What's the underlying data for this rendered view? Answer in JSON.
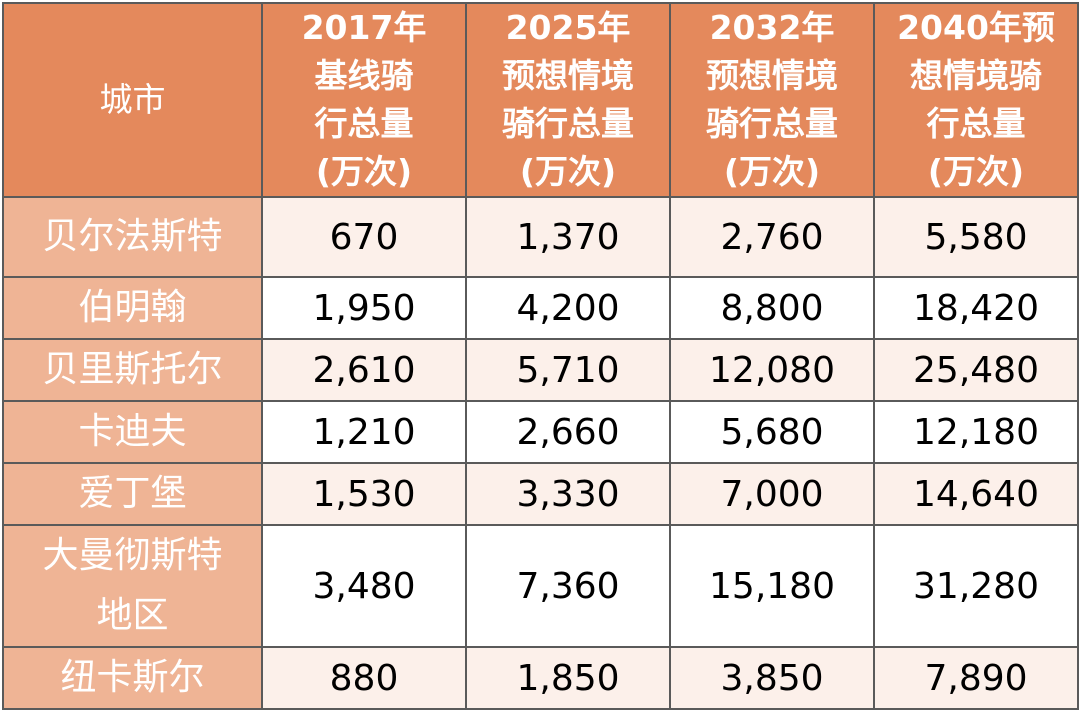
{
  "chart_data": {
    "type": "table",
    "columns": [
      {
        "label": "城市",
        "lines": [
          "城市"
        ]
      },
      {
        "label": "2017年基线骑行总量(万次)",
        "lines": [
          "2017年",
          "基线骑",
          "行总量",
          "(万次)"
        ]
      },
      {
        "label": "2025年预想情境骑行总量(万次)",
        "lines": [
          "2025年",
          "预想情境",
          "骑行总量",
          "(万次)"
        ]
      },
      {
        "label": "2032年预想情境骑行总量(万次)",
        "lines": [
          "2032年",
          "预想情境",
          "骑行总量",
          "(万次)"
        ]
      },
      {
        "label": "2040年预想情境骑行总量(万次)",
        "lines": [
          "2040年预",
          "想情境骑",
          "行总量",
          "(万次)"
        ]
      }
    ],
    "rows": [
      {
        "city_lines": [
          "贝尔法斯特"
        ],
        "values": [
          "670",
          "1,370",
          "2,760",
          "5,580"
        ]
      },
      {
        "city_lines": [
          "伯明翰"
        ],
        "values": [
          "1,950",
          "4,200",
          "8,800",
          "18,420"
        ]
      },
      {
        "city_lines": [
          "贝里斯托尔"
        ],
        "values": [
          "2,610",
          "5,710",
          "12,080",
          "25,480"
        ]
      },
      {
        "city_lines": [
          "卡迪夫"
        ],
        "values": [
          "1,210",
          "2,660",
          "5,680",
          "12,180"
        ]
      },
      {
        "city_lines": [
          "爱丁堡"
        ],
        "values": [
          "1,530",
          "3,330",
          "7,000",
          "14,640"
        ]
      },
      {
        "city_lines": [
          "大曼彻斯特",
          "地区"
        ],
        "values": [
          "3,480",
          "7,360",
          "15,180",
          "31,280"
        ]
      },
      {
        "city_lines": [
          "纽卡斯尔"
        ],
        "values": [
          "880",
          "1,850",
          "3,850",
          "7,890"
        ]
      }
    ]
  },
  "colors": {
    "header_bg": "#e4895c",
    "city_bg": "#efb495",
    "row_tint": "#fcf0ea",
    "row_white": "#ffffff",
    "border": "#5a5a5a"
  }
}
